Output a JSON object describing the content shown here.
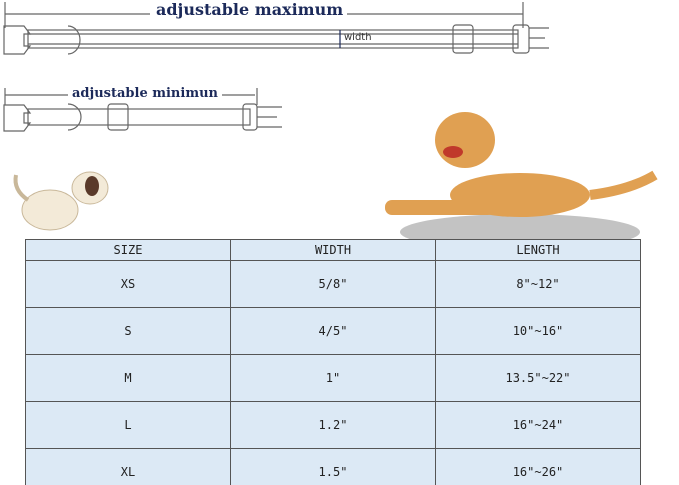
{
  "collar": {
    "max_label": "adjustable maximum",
    "min_label": "adjustable minimun",
    "width_label": "width"
  },
  "table": {
    "headers": [
      "SIZE",
      "WIDTH",
      "LENGTH"
    ],
    "rows": [
      [
        "XS",
        "5/8\"",
        "8\"~12\""
      ],
      [
        "S",
        "4/5\"",
        "10\"~16\""
      ],
      [
        "M",
        "1\"",
        "13.5\"~22\""
      ],
      [
        "L",
        "1.2\"",
        "16\"~24\""
      ],
      [
        "XL",
        "1.5\"",
        "16\"~26\""
      ]
    ]
  },
  "colors": {
    "table_fill": "#dce9f5",
    "label": "#1c2a5a",
    "dog": "#e0a052"
  }
}
